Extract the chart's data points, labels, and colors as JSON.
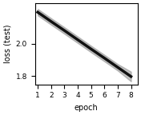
{
  "x": [
    1,
    2,
    3,
    4,
    5,
    6,
    7,
    8
  ],
  "y_mean": [
    2.195,
    2.138,
    2.082,
    2.025,
    1.968,
    1.912,
    1.855,
    1.798
  ],
  "y_upper": [
    2.215,
    2.158,
    2.102,
    2.045,
    1.988,
    1.932,
    1.875,
    1.828
  ],
  "y_lower": [
    2.175,
    2.118,
    2.062,
    2.005,
    1.948,
    1.892,
    1.835,
    1.768
  ],
  "line_color": "#111111",
  "band_color": "#888888",
  "band_alpha": 0.5,
  "xlabel": "epoch",
  "ylabel": "loss (test)",
  "ylim": [
    1.75,
    2.25
  ],
  "xlim": [
    0.8,
    8.5
  ],
  "xticks": [
    1,
    2,
    3,
    4,
    5,
    6,
    7,
    8
  ],
  "yticks": [
    1.8,
    2.0
  ],
  "linewidth": 2.5,
  "figsize": [
    1.76,
    1.44
  ],
  "dpi": 100
}
